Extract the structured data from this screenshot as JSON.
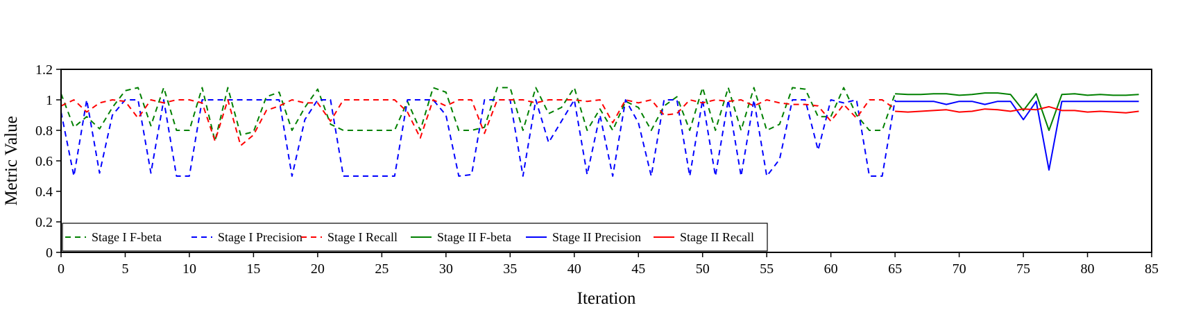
{
  "chart_data": {
    "type": "line",
    "title": "",
    "xlabel": "Iteration",
    "ylabel": "Metric Value",
    "xlim": [
      0,
      85
    ],
    "ylim": [
      0,
      1.2
    ],
    "x_ticks": [
      0,
      5,
      10,
      15,
      20,
      25,
      30,
      35,
      40,
      45,
      50,
      55,
      60,
      65,
      70,
      75,
      80,
      85
    ],
    "y_ticks": [
      0,
      0.2,
      0.4,
      0.6,
      0.8,
      1,
      1.2
    ],
    "grid": false,
    "legend_position": "bottom-left",
    "series": [
      {
        "name": "Stage I F-beta",
        "color": "#008000",
        "dash": "dashed",
        "x": [
          0,
          1,
          2,
          3,
          4,
          5,
          6,
          7,
          8,
          9,
          10,
          11,
          12,
          13,
          14,
          15,
          16,
          17,
          18,
          19,
          20,
          21,
          22,
          23,
          24,
          25,
          26,
          27,
          28,
          29,
          30,
          31,
          32,
          33,
          34,
          35,
          36,
          37,
          38,
          39,
          40,
          41,
          42,
          43,
          44,
          45,
          46,
          47,
          48,
          49,
          50,
          51,
          52,
          53,
          54,
          55,
          56,
          57,
          58,
          59,
          60,
          61,
          62,
          63,
          64,
          65
        ],
        "values": [
          1.04,
          0.82,
          0.89,
          0.81,
          0.95,
          1.06,
          1.08,
          0.83,
          1.08,
          0.8,
          0.8,
          1.08,
          0.73,
          1.08,
          0.77,
          0.79,
          1.02,
          1.05,
          0.8,
          0.95,
          1.07,
          0.84,
          0.8,
          0.8,
          0.8,
          0.8,
          0.8,
          0.99,
          0.8,
          1.08,
          1.05,
          0.8,
          0.8,
          0.82,
          1.08,
          1.08,
          0.8,
          1.08,
          0.91,
          0.95,
          1.08,
          0.8,
          0.94,
          0.8,
          0.99,
          0.95,
          0.8,
          0.96,
          1.02,
          0.8,
          1.08,
          0.8,
          1.08,
          0.8,
          1.08,
          0.8,
          0.84,
          1.08,
          1.07,
          0.89,
          0.89,
          1.08,
          0.9,
          0.8,
          0.8,
          1.04
        ]
      },
      {
        "name": "Stage I Precision",
        "color": "#0000ff",
        "dash": "dashed",
        "x": [
          0,
          1,
          2,
          3,
          4,
          5,
          6,
          7,
          8,
          9,
          10,
          11,
          12,
          13,
          14,
          15,
          16,
          17,
          18,
          19,
          20,
          21,
          22,
          23,
          24,
          25,
          26,
          27,
          28,
          29,
          30,
          31,
          32,
          33,
          34,
          35,
          36,
          37,
          38,
          39,
          40,
          41,
          42,
          43,
          44,
          45,
          46,
          47,
          48,
          49,
          50,
          51,
          52,
          53,
          54,
          55,
          56,
          57,
          58,
          59,
          60,
          61,
          62,
          63,
          64,
          65
        ],
        "values": [
          0.92,
          0.5,
          1.0,
          0.52,
          0.9,
          1.0,
          1.0,
          0.52,
          1.0,
          0.5,
          0.5,
          1.0,
          1.0,
          1.0,
          1.0,
          1.0,
          1.0,
          1.0,
          0.5,
          0.87,
          1.0,
          1.0,
          0.5,
          0.5,
          0.5,
          0.5,
          0.5,
          1.0,
          1.0,
          1.0,
          0.9,
          0.5,
          0.51,
          1.0,
          1.0,
          1.0,
          0.5,
          1.0,
          0.72,
          0.86,
          1.0,
          0.51,
          0.9,
          0.5,
          1.0,
          0.85,
          0.5,
          1.0,
          1.0,
          0.5,
          1.0,
          0.5,
          1.0,
          0.5,
          1.0,
          0.5,
          0.61,
          1.0,
          1.0,
          0.67,
          1.0,
          0.98,
          1.0,
          0.5,
          0.5,
          1.0
        ]
      },
      {
        "name": "Stage I Recall",
        "color": "#ff0000",
        "dash": "dashed",
        "x": [
          0,
          1,
          2,
          3,
          4,
          5,
          6,
          7,
          8,
          9,
          10,
          11,
          12,
          13,
          14,
          15,
          16,
          17,
          18,
          19,
          20,
          21,
          22,
          23,
          24,
          25,
          26,
          27,
          28,
          29,
          30,
          31,
          32,
          33,
          34,
          35,
          36,
          37,
          38,
          39,
          40,
          41,
          42,
          43,
          44,
          45,
          46,
          47,
          48,
          49,
          50,
          51,
          52,
          53,
          54,
          55,
          56,
          57,
          58,
          59,
          60,
          61,
          62,
          63,
          64,
          65
        ],
        "values": [
          0.96,
          1.0,
          0.92,
          0.98,
          1.0,
          0.99,
          0.88,
          1.0,
          0.98,
          1.0,
          1.0,
          0.98,
          0.73,
          1.0,
          0.7,
          0.77,
          0.93,
          0.96,
          1.0,
          0.98,
          0.98,
          0.86,
          1.0,
          1.0,
          1.0,
          1.0,
          1.0,
          0.92,
          0.75,
          1.0,
          0.96,
          1.0,
          1.0,
          0.78,
          1.0,
          1.0,
          1.0,
          0.98,
          1.0,
          1.0,
          1.0,
          0.99,
          1.0,
          0.85,
          1.0,
          0.98,
          1.0,
          0.9,
          0.91,
          1.0,
          0.98,
          1.0,
          0.99,
          1.0,
          0.96,
          1.0,
          0.98,
          0.97,
          0.97,
          0.96,
          0.86,
          0.97,
          0.88,
          1.0,
          1.0,
          0.94
        ]
      },
      {
        "name": "Stage II F-beta",
        "color": "#008000",
        "dash": "solid",
        "x": [
          65,
          66,
          67,
          68,
          69,
          70,
          71,
          72,
          73,
          74,
          75,
          76,
          77,
          78,
          79,
          80,
          81,
          82,
          83,
          84
        ],
        "values": [
          1.04,
          1.035,
          1.035,
          1.04,
          1.04,
          1.03,
          1.035,
          1.045,
          1.045,
          1.035,
          0.93,
          1.04,
          0.8,
          1.035,
          1.04,
          1.03,
          1.035,
          1.03,
          1.03,
          1.035
        ]
      },
      {
        "name": "Stage II Precision",
        "color": "#0000ff",
        "dash": "solid",
        "x": [
          65,
          66,
          67,
          68,
          69,
          70,
          71,
          72,
          73,
          74,
          75,
          76,
          77,
          78,
          79,
          80,
          81,
          82,
          83,
          84
        ],
        "values": [
          0.99,
          0.99,
          0.99,
          0.99,
          0.97,
          0.99,
          0.99,
          0.97,
          0.99,
          0.99,
          0.87,
          0.99,
          0.54,
          0.99,
          0.99,
          0.99,
          0.99,
          0.99,
          0.99,
          0.99
        ]
      },
      {
        "name": "Stage II Recall",
        "color": "#ff0000",
        "dash": "solid",
        "x": [
          65,
          66,
          67,
          68,
          69,
          70,
          71,
          72,
          73,
          74,
          75,
          76,
          77,
          78,
          79,
          80,
          81,
          82,
          83,
          84
        ],
        "values": [
          0.925,
          0.92,
          0.925,
          0.93,
          0.935,
          0.92,
          0.925,
          0.94,
          0.935,
          0.925,
          0.94,
          0.935,
          0.955,
          0.93,
          0.93,
          0.92,
          0.925,
          0.92,
          0.915,
          0.925
        ]
      }
    ]
  }
}
